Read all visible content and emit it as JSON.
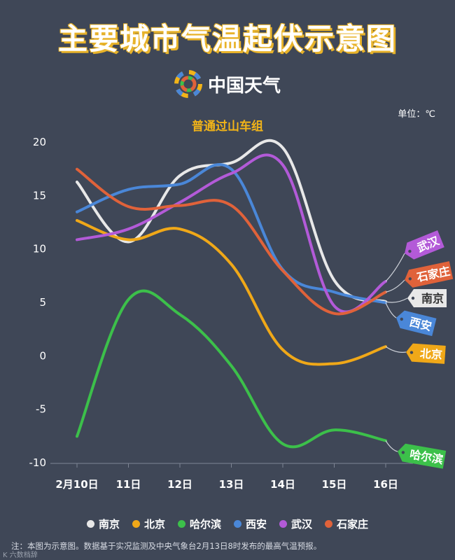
{
  "title": "主要城市气温起伏示意图",
  "brand": "中国天气",
  "note": "注：本图为示意图。数据基于实况监测及中央气象台2月13日8时发布的最高气温预报。",
  "watermark": "K 六数档辞",
  "chart_data": {
    "type": "line",
    "title": "普通过山车组",
    "unit": "单位：℃",
    "categories": [
      "2月10日",
      "11日",
      "12日",
      "13日",
      "14日",
      "15日",
      "16日"
    ],
    "ylim": [
      -10,
      20
    ],
    "yticks": [
      20,
      15,
      10,
      5,
      0,
      -5,
      -10
    ],
    "grid": false,
    "legend_position": "bottom",
    "series": [
      {
        "name": "南京",
        "color": "#e8e8e8",
        "values": [
          16.2,
          10.6,
          16.8,
          18.0,
          19.4,
          7.0,
          5.0
        ]
      },
      {
        "name": "北京",
        "color": "#f0a818",
        "values": [
          12.6,
          10.8,
          11.8,
          8.5,
          0.5,
          -0.8,
          0.8
        ]
      },
      {
        "name": "哈尔滨",
        "color": "#3cc04a",
        "values": [
          -7.6,
          5.2,
          3.8,
          -1.0,
          -8.3,
          -7.0,
          -8.0
        ]
      },
      {
        "name": "西安",
        "color": "#4a87d8",
        "values": [
          13.4,
          15.5,
          16.0,
          17.4,
          8.0,
          5.9,
          4.9
        ]
      },
      {
        "name": "武汉",
        "color": "#b35ad8",
        "values": [
          10.8,
          11.8,
          14.3,
          17.0,
          17.8,
          4.6,
          6.9
        ]
      },
      {
        "name": "石家庄",
        "color": "#e0623a",
        "values": [
          17.4,
          13.9,
          14.0,
          14.0,
          7.9,
          3.9,
          5.9
        ]
      }
    ],
    "tags": [
      {
        "series": "武汉",
        "label": "武汉"
      },
      {
        "series": "石家庄",
        "label": "石家庄"
      },
      {
        "series": "南京",
        "label": "南京"
      },
      {
        "series": "西安",
        "label": "西安"
      },
      {
        "series": "北京",
        "label": "北京"
      },
      {
        "series": "哈尔滨",
        "label": "哈尔滨"
      }
    ]
  }
}
